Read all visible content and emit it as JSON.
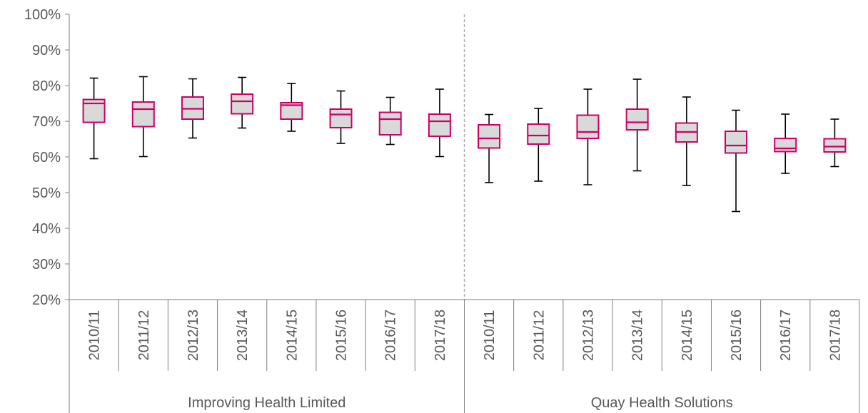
{
  "chart_data": {
    "type": "boxplot",
    "y_axis": {
      "min": 0.2,
      "max": 1.0,
      "ticks": [
        "20%",
        "30%",
        "40%",
        "50%",
        "60%",
        "70%",
        "80%",
        "90%",
        "100%"
      ]
    },
    "grid": false,
    "groups": [
      {
        "name": "Improving Health Limited",
        "boxes": [
          {
            "category": "2010/11",
            "min": 0.595,
            "q1": 0.697,
            "median": 0.75,
            "q3": 0.761,
            "max": 0.821
          },
          {
            "category": "2011/12",
            "min": 0.601,
            "q1": 0.685,
            "median": 0.734,
            "q3": 0.754,
            "max": 0.825
          },
          {
            "category": "2012/13",
            "min": 0.653,
            "q1": 0.706,
            "median": 0.735,
            "q3": 0.768,
            "max": 0.819
          },
          {
            "category": "2013/14",
            "min": 0.681,
            "q1": 0.721,
            "median": 0.756,
            "q3": 0.776,
            "max": 0.823
          },
          {
            "category": "2014/15",
            "min": 0.672,
            "q1": 0.706,
            "median": 0.745,
            "q3": 0.752,
            "max": 0.806
          },
          {
            "category": "2015/16",
            "min": 0.638,
            "q1": 0.682,
            "median": 0.719,
            "q3": 0.734,
            "max": 0.785
          },
          {
            "category": "2016/17",
            "min": 0.635,
            "q1": 0.662,
            "median": 0.706,
            "q3": 0.725,
            "max": 0.767
          },
          {
            "category": "2017/18",
            "min": 0.601,
            "q1": 0.658,
            "median": 0.7,
            "q3": 0.72,
            "max": 0.79
          }
        ]
      },
      {
        "name": "Quay Health Solutions",
        "boxes": [
          {
            "category": "2010/11",
            "min": 0.528,
            "q1": 0.625,
            "median": 0.652,
            "q3": 0.69,
            "max": 0.719
          },
          {
            "category": "2011/12",
            "min": 0.532,
            "q1": 0.636,
            "median": 0.66,
            "q3": 0.692,
            "max": 0.736
          },
          {
            "category": "2012/13",
            "min": 0.522,
            "q1": 0.652,
            "median": 0.67,
            "q3": 0.717,
            "max": 0.79
          },
          {
            "category": "2013/14",
            "min": 0.561,
            "q1": 0.676,
            "median": 0.697,
            "q3": 0.734,
            "max": 0.818
          },
          {
            "category": "2014/15",
            "min": 0.52,
            "q1": 0.642,
            "median": 0.67,
            "q3": 0.695,
            "max": 0.768
          },
          {
            "category": "2015/16",
            "min": 0.447,
            "q1": 0.611,
            "median": 0.632,
            "q3": 0.672,
            "max": 0.731
          },
          {
            "category": "2016/17",
            "min": 0.554,
            "q1": 0.615,
            "median": 0.624,
            "q3": 0.652,
            "max": 0.72
          },
          {
            "category": "2017/18",
            "min": 0.573,
            "q1": 0.614,
            "median": 0.629,
            "q3": 0.651,
            "max": 0.706
          }
        ]
      }
    ]
  }
}
